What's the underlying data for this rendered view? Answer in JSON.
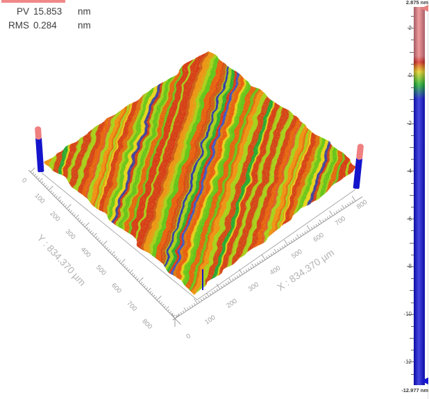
{
  "decor": {
    "top_left_accent_color": "#ef8989"
  },
  "header": {
    "rows": [
      {
        "label": "PV",
        "value": "15.853",
        "unit": "nm"
      },
      {
        "label": "RMS",
        "value": "0.284",
        "unit": "nm"
      }
    ]
  },
  "chart_data": {
    "type": "surface3d_topography_map",
    "title": "",
    "stats": {
      "PV_nm": 15.853,
      "RMS_nm": 0.284
    },
    "x_axis": {
      "title": "X : 834.370 µm",
      "tick_labels": [
        "0",
        "100",
        "200",
        "300",
        "400",
        "500",
        "600",
        "700",
        "800"
      ],
      "major_step": 100,
      "minor_step": 10,
      "range_um": [
        0,
        834.37
      ]
    },
    "y_axis": {
      "title": "Y : 834.370 µm",
      "tick_labels": [
        "0",
        "100",
        "200",
        "300",
        "400",
        "500",
        "600",
        "700",
        "800"
      ],
      "major_step": 100,
      "minor_step": 10,
      "range_um": [
        0,
        834.37
      ]
    },
    "z_axis": {
      "unit": "nm",
      "max": 2.875,
      "min": -12.977,
      "max_label": "2.875 nm",
      "min_label": "-12.977 nm",
      "major_tick_labels": [
        "2",
        "0",
        "-2",
        "-4",
        "-6",
        "-8",
        "-10",
        "-12"
      ],
      "major_step": 2,
      "minor_step": 0.5
    },
    "colorbar": {
      "stops": [
        {
          "pos": 0,
          "color": "#ec8484"
        },
        {
          "pos": 0.13,
          "color": "#e87c7c"
        },
        {
          "pos": 0.146,
          "color": "#dc2c1c"
        },
        {
          "pos": 0.158,
          "color": "#ec8414"
        },
        {
          "pos": 0.171,
          "color": "#ecd41c"
        },
        {
          "pos": 0.188,
          "color": "#84cc20"
        },
        {
          "pos": 0.206,
          "color": "#1cb42c"
        },
        {
          "pos": 0.244,
          "color": "#1416d6"
        },
        {
          "pos": 1,
          "color": "#1010d8"
        }
      ],
      "top_marker_color": "#ea8080",
      "bottom_marker_color": "#1616d2"
    },
    "surface": {
      "appearance": "diagonal polishing streaks running lower-left to upper-right",
      "streak_palette": [
        {
          "color": "#d83418",
          "w": 14
        },
        {
          "color": "#e85c10",
          "w": 9
        },
        {
          "color": "#f09014",
          "w": 7
        },
        {
          "color": "#ecd41c",
          "w": 14
        },
        {
          "color": "#a6d01c",
          "w": 17
        },
        {
          "color": "#5cc41c",
          "w": 14
        },
        {
          "color": "#20a834",
          "w": 9
        },
        {
          "color": "#e44834",
          "w": 5
        },
        {
          "color": "#1414cc",
          "w": 6
        },
        {
          "color": "#2c50dc",
          "w": 3
        }
      ],
      "corner_post": {
        "cap_color": "#f08080",
        "shaft_color": "#1414cc"
      }
    }
  }
}
